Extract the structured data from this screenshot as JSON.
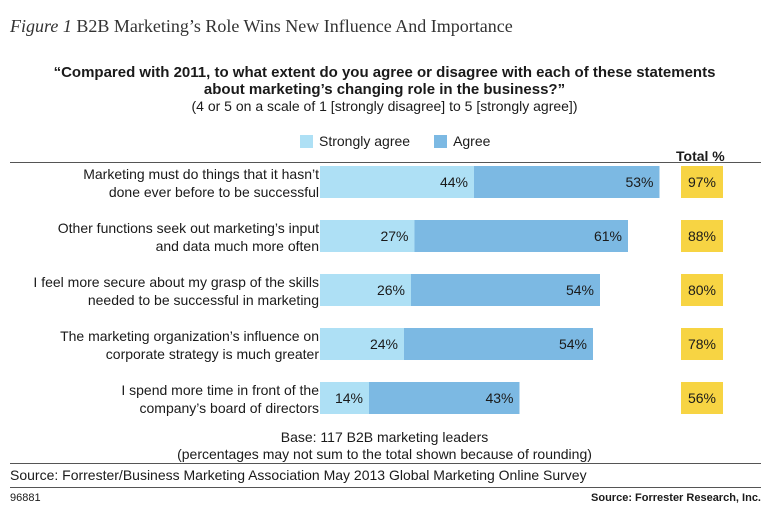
{
  "figure": {
    "number": "Figure 1",
    "title": "B2B Marketing’s Role Wins New Influence And Importance"
  },
  "question": {
    "line1": "“Compared with 2011, to what extent do you agree or disagree with each of these statements",
    "line2": "about marketing’s changing role in the business?”",
    "scale": "(4 or 5 on a scale of 1 [strongly disagree] to 5 [strongly agree])"
  },
  "legend": {
    "strongly_agree": "Strongly agree",
    "agree": "Agree"
  },
  "total_header": "Total %",
  "colors": {
    "strongly_agree": "#aee0f5",
    "agree": "#7cb9e3",
    "total_box": "#f7d443"
  },
  "chart_data": {
    "type": "bar",
    "orientation": "horizontal",
    "stacked": true,
    "xlim": [
      0,
      100
    ],
    "categories": [
      [
        "Marketing must do things that it hasn’t",
        "done ever before to be successful"
      ],
      [
        "Other functions seek out marketing’s input",
        "and data much more often"
      ],
      [
        "I feel more secure about my grasp of the skills",
        "needed to be successful in marketing"
      ],
      [
        "The marketing organization’s influence on",
        "corporate strategy is much greater"
      ],
      [
        "I spend more time in front of the",
        "company’s board of directors"
      ]
    ],
    "series": [
      {
        "name": "Strongly agree",
        "values": [
          44,
          27,
          26,
          24,
          14
        ],
        "labels": [
          "44%",
          "27%",
          "26%",
          "24%",
          "14%"
        ]
      },
      {
        "name": "Agree",
        "values": [
          53,
          61,
          54,
          54,
          43
        ],
        "labels": [
          "53%",
          "61%",
          "54%",
          "54%",
          "43%"
        ]
      }
    ],
    "totals": [
      "97%",
      "88%",
      "80%",
      "78%",
      "56%"
    ]
  },
  "base": {
    "line1": "Base: 117 B2B marketing leaders",
    "line2": "(percentages may not sum to the total shown because of rounding)"
  },
  "source": "Source: Forrester/Business Marketing Association May 2013 Global Marketing Online Survey",
  "footer": {
    "id": "96881",
    "source": "Source: Forrester Research, Inc."
  }
}
